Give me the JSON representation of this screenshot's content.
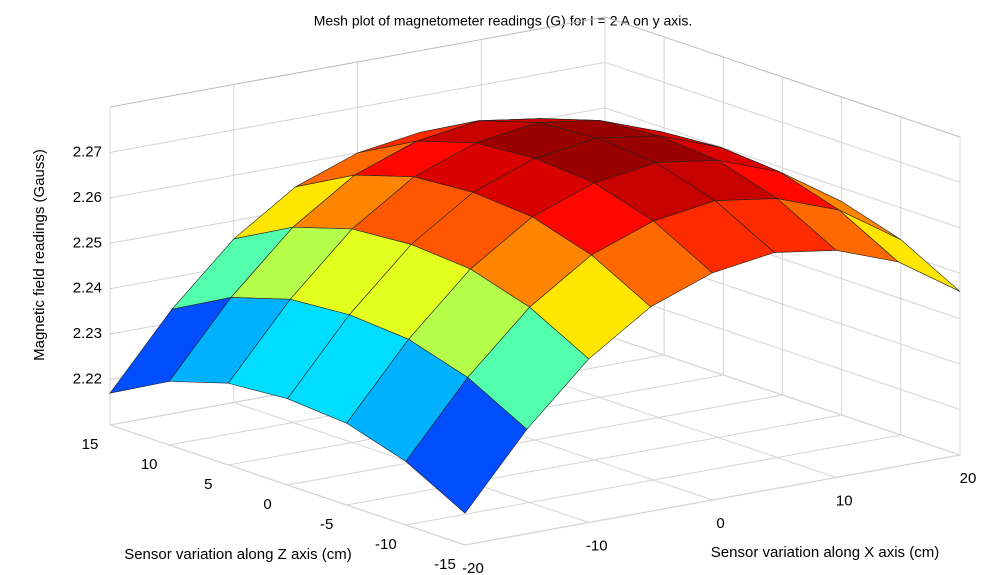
{
  "chart_data": {
    "type": "surface",
    "title": "Mesh plot of magnetometer readings (G) for I = 2 A on y axis.",
    "xlabel": "Sensor variation along X axis (cm)",
    "ylabel": "Sensor variation along Z axis (cm)",
    "zlabel": "Magnetic field readings (Gauss)",
    "x": [
      -20,
      -15,
      -10,
      -5,
      0,
      5,
      10,
      15,
      20
    ],
    "y": [
      -15,
      -10,
      -5,
      0,
      5,
      10,
      15
    ],
    "values": [
      [
        2.217,
        2.233,
        2.246,
        2.255,
        2.26,
        2.262,
        2.26,
        2.255,
        2.246
      ],
      [
        2.224,
        2.24,
        2.253,
        2.262,
        2.267,
        2.269,
        2.267,
        2.262,
        2.253
      ],
      [
        2.228,
        2.244,
        2.257,
        2.266,
        2.271,
        2.273,
        2.271,
        2.266,
        2.257
      ],
      [
        2.229,
        2.245,
        2.258,
        2.267,
        2.272,
        2.274,
        2.272,
        2.267,
        2.258
      ],
      [
        2.228,
        2.244,
        2.257,
        2.266,
        2.271,
        2.273,
        2.271,
        2.266,
        2.257
      ],
      [
        2.224,
        2.24,
        2.253,
        2.262,
        2.267,
        2.269,
        2.267,
        2.262,
        2.253
      ],
      [
        2.217,
        2.233,
        2.246,
        2.255,
        2.26,
        2.262,
        2.26,
        2.255,
        2.246
      ]
    ],
    "xlim": [
      -20,
      20
    ],
    "xticks": [
      -20,
      -10,
      0,
      10,
      20
    ],
    "ylim": [
      -15,
      15
    ],
    "yticks": [
      -15,
      -10,
      -5,
      0,
      5,
      10,
      15
    ],
    "zlim": [
      2.21,
      2.28
    ],
    "zticks": [
      2.22,
      2.23,
      2.24,
      2.25,
      2.26,
      2.27
    ],
    "colormap": "jet",
    "grid": true
  }
}
